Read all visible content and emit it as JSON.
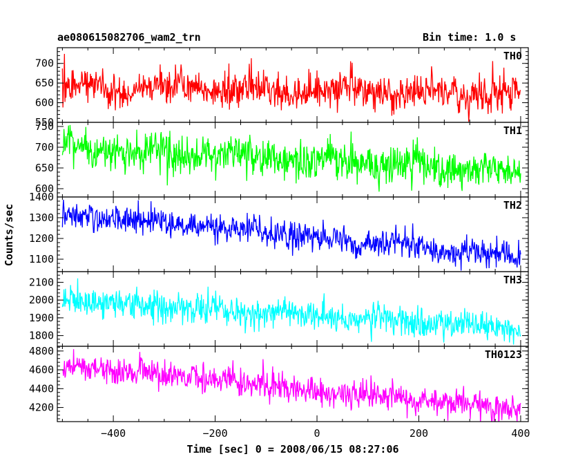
{
  "header": {
    "title": "ae080615082706_wam2_trn",
    "bin_time": "Bin time: 1.0 s"
  },
  "chart_data": {
    "type": "line",
    "title": "ae080615082706_wam2_trn",
    "subtitle": "Bin time: 1.0 s",
    "xlabel": "Time [sec] 0 = 2008/06/15 08:27:06",
    "ylabel": "Counts/sec",
    "xlim": [
      -510,
      415
    ],
    "xticks": [
      -400,
      -200,
      0,
      200,
      400
    ],
    "x_range": [
      -500,
      400
    ],
    "grid": false,
    "panels": [
      {
        "name": "TH0",
        "color": "#ff0000",
        "ylim": [
          550,
          740
        ],
        "yticks": [
          550,
          600,
          650,
          700
        ],
        "trend": {
          "start": 640,
          "end": 625,
          "noise": 25
        }
      },
      {
        "name": "TH1",
        "color": "#00ff00",
        "ylim": [
          580,
          760
        ],
        "yticks": [
          600,
          650,
          700,
          750
        ],
        "trend": {
          "start": 700,
          "end": 640,
          "noise": 25
        }
      },
      {
        "name": "TH2",
        "color": "#0000ff",
        "ylim": [
          1040,
          1400
        ],
        "yticks": [
          1100,
          1200,
          1300,
          1400
        ],
        "trend": {
          "start": 1320,
          "end": 1110,
          "noise": 35
        }
      },
      {
        "name": "TH3",
        "color": "#00ffff",
        "ylim": [
          1740,
          2160
        ],
        "yticks": [
          1800,
          1900,
          2000,
          2100
        ],
        "trend": {
          "start": 2000,
          "end": 1840,
          "noise": 45
        }
      },
      {
        "name": "TH0123",
        "color": "#ff00ff",
        "ylim": [
          4050,
          4850
        ],
        "yticks": [
          4200,
          4400,
          4600,
          4800
        ],
        "trend": {
          "start": 4660,
          "end": 4180,
          "noise": 80
        }
      }
    ]
  }
}
